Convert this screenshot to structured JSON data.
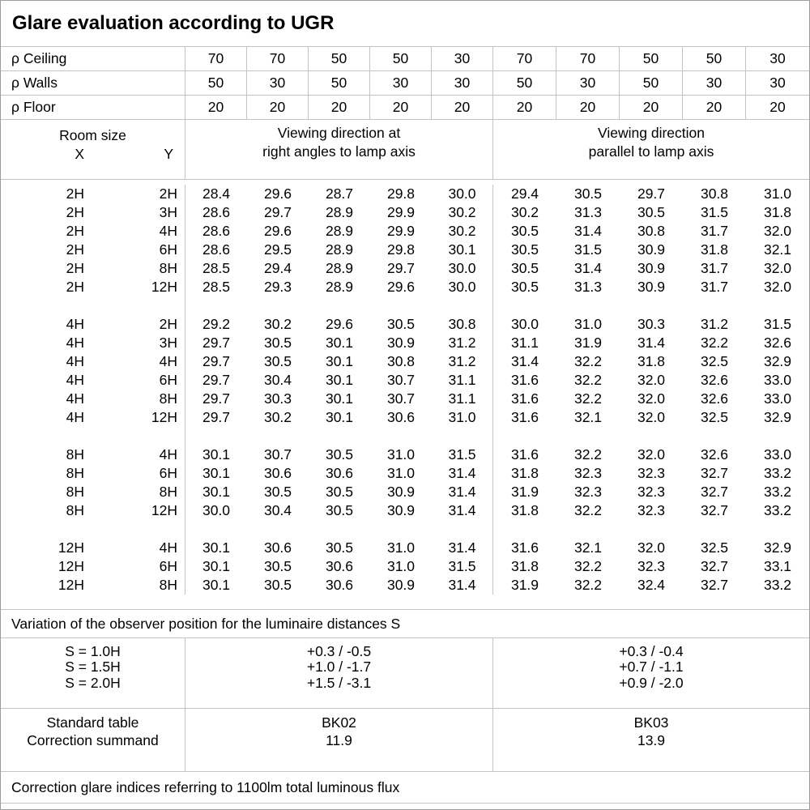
{
  "title": "Glare evaluation according to UGR",
  "colors": {
    "background": "#ffffff",
    "text": "#000000",
    "grid": "#c3c3c3",
    "frame": "#9b9b9b"
  },
  "chart_data": {
    "type": "table",
    "title": "Glare evaluation according to UGR",
    "reflectance_header": {
      "rows": [
        {
          "label": "ρ Ceiling",
          "values": [
            "70",
            "70",
            "50",
            "50",
            "30",
            "70",
            "70",
            "50",
            "50",
            "30"
          ]
        },
        {
          "label": "ρ Walls",
          "values": [
            "50",
            "30",
            "50",
            "30",
            "30",
            "50",
            "30",
            "50",
            "30",
            "30"
          ]
        },
        {
          "label": "ρ Floor",
          "values": [
            "20",
            "20",
            "20",
            "20",
            "20",
            "20",
            "20",
            "20",
            "20",
            "20"
          ]
        }
      ]
    },
    "column_header": {
      "room_size_label": "Room size",
      "x_label": "X",
      "y_label": "Y",
      "group1": [
        "Viewing direction at",
        "right angles to lamp axis"
      ],
      "group2": [
        "Viewing direction",
        "parallel to lamp axis"
      ]
    },
    "ugr_blocks": [
      [
        {
          "x": "2H",
          "y": "2H",
          "values": [
            "28.4",
            "29.6",
            "28.7",
            "29.8",
            "30.0",
            "29.4",
            "30.5",
            "29.7",
            "30.8",
            "31.0"
          ]
        },
        {
          "x": "2H",
          "y": "3H",
          "values": [
            "28.6",
            "29.7",
            "28.9",
            "29.9",
            "30.2",
            "30.2",
            "31.3",
            "30.5",
            "31.5",
            "31.8"
          ]
        },
        {
          "x": "2H",
          "y": "4H",
          "values": [
            "28.6",
            "29.6",
            "28.9",
            "29.9",
            "30.2",
            "30.5",
            "31.4",
            "30.8",
            "31.7",
            "32.0"
          ]
        },
        {
          "x": "2H",
          "y": "6H",
          "values": [
            "28.6",
            "29.5",
            "28.9",
            "29.8",
            "30.1",
            "30.5",
            "31.5",
            "30.9",
            "31.8",
            "32.1"
          ]
        },
        {
          "x": "2H",
          "y": "8H",
          "values": [
            "28.5",
            "29.4",
            "28.9",
            "29.7",
            "30.0",
            "30.5",
            "31.4",
            "30.9",
            "31.7",
            "32.0"
          ]
        },
        {
          "x": "2H",
          "y": "12H",
          "values": [
            "28.5",
            "29.3",
            "28.9",
            "29.6",
            "30.0",
            "30.5",
            "31.3",
            "30.9",
            "31.7",
            "32.0"
          ]
        }
      ],
      [
        {
          "x": "4H",
          "y": "2H",
          "values": [
            "29.2",
            "30.2",
            "29.6",
            "30.5",
            "30.8",
            "30.0",
            "31.0",
            "30.3",
            "31.2",
            "31.5"
          ]
        },
        {
          "x": "4H",
          "y": "3H",
          "values": [
            "29.7",
            "30.5",
            "30.1",
            "30.9",
            "31.2",
            "31.1",
            "31.9",
            "31.4",
            "32.2",
            "32.6"
          ]
        },
        {
          "x": "4H",
          "y": "4H",
          "values": [
            "29.7",
            "30.5",
            "30.1",
            "30.8",
            "31.2",
            "31.4",
            "32.2",
            "31.8",
            "32.5",
            "32.9"
          ]
        },
        {
          "x": "4H",
          "y": "6H",
          "values": [
            "29.7",
            "30.4",
            "30.1",
            "30.7",
            "31.1",
            "31.6",
            "32.2",
            "32.0",
            "32.6",
            "33.0"
          ]
        },
        {
          "x": "4H",
          "y": "8H",
          "values": [
            "29.7",
            "30.3",
            "30.1",
            "30.7",
            "31.1",
            "31.6",
            "32.2",
            "32.0",
            "32.6",
            "33.0"
          ]
        },
        {
          "x": "4H",
          "y": "12H",
          "values": [
            "29.7",
            "30.2",
            "30.1",
            "30.6",
            "31.0",
            "31.6",
            "32.1",
            "32.0",
            "32.5",
            "32.9"
          ]
        }
      ],
      [
        {
          "x": "8H",
          "y": "4H",
          "values": [
            "30.1",
            "30.7",
            "30.5",
            "31.0",
            "31.5",
            "31.6",
            "32.2",
            "32.0",
            "32.6",
            "33.0"
          ]
        },
        {
          "x": "8H",
          "y": "6H",
          "values": [
            "30.1",
            "30.6",
            "30.6",
            "31.0",
            "31.4",
            "31.8",
            "32.3",
            "32.3",
            "32.7",
            "33.2"
          ]
        },
        {
          "x": "8H",
          "y": "8H",
          "values": [
            "30.1",
            "30.5",
            "30.5",
            "30.9",
            "31.4",
            "31.9",
            "32.3",
            "32.3",
            "32.7",
            "33.2"
          ]
        },
        {
          "x": "8H",
          "y": "12H",
          "values": [
            "30.0",
            "30.4",
            "30.5",
            "30.9",
            "31.4",
            "31.8",
            "32.2",
            "32.3",
            "32.7",
            "33.2"
          ]
        }
      ],
      [
        {
          "x": "12H",
          "y": "4H",
          "values": [
            "30.1",
            "30.6",
            "30.5",
            "31.0",
            "31.4",
            "31.6",
            "32.1",
            "32.0",
            "32.5",
            "32.9"
          ]
        },
        {
          "x": "12H",
          "y": "6H",
          "values": [
            "30.1",
            "30.5",
            "30.6",
            "31.0",
            "31.5",
            "31.8",
            "32.2",
            "32.3",
            "32.7",
            "33.1"
          ]
        },
        {
          "x": "12H",
          "y": "8H",
          "values": [
            "30.1",
            "30.5",
            "30.6",
            "30.9",
            "31.4",
            "31.9",
            "32.2",
            "32.4",
            "32.7",
            "33.2"
          ]
        }
      ]
    ],
    "variation_note": "Variation of the observer position for the luminaire distances S",
    "observer_variation": {
      "rows": [
        {
          "label": "S = 1.0H",
          "group1": "+0.3 / -0.5",
          "group2": "+0.3 / -0.4"
        },
        {
          "label": "S = 1.5H",
          "group1": "+1.0 / -1.7",
          "group2": "+0.7 / -1.1"
        },
        {
          "label": "S = 2.0H",
          "group1": "+1.5 / -3.1",
          "group2": "+0.9 / -2.0"
        }
      ]
    },
    "standard": {
      "rows": [
        {
          "label": "Standard table",
          "group1": "BK02",
          "group2": "BK03"
        },
        {
          "label": "Correction summand",
          "group1": "11.9",
          "group2": "13.9"
        }
      ]
    },
    "footer_note": "Correction glare indices referring to 1100lm total luminous flux"
  }
}
